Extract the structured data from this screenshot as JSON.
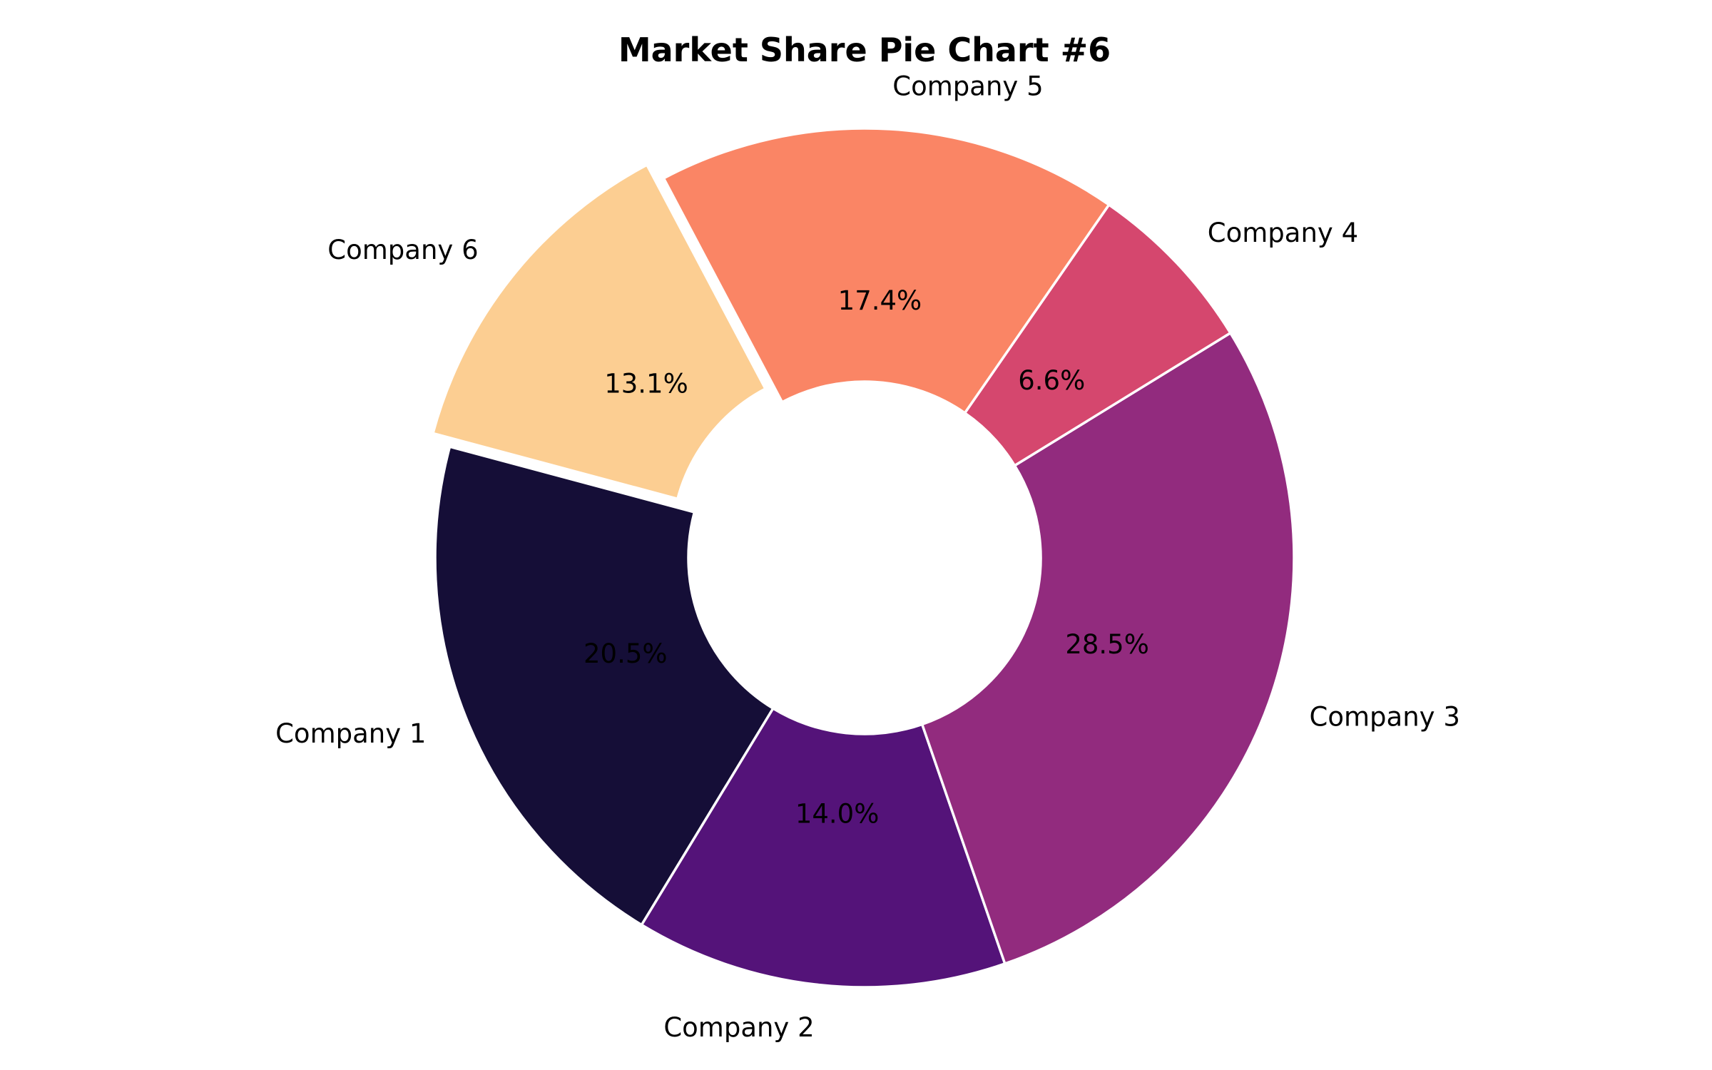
{
  "chart_data": {
    "type": "pie",
    "title": "Market Share Pie Chart #6",
    "donut": true,
    "start_angle_deg": 165,
    "direction": "counterclockwise",
    "autopct_format": "%.1f%%",
    "slices": [
      {
        "label": "Company 1",
        "value": 20.5,
        "pct_text": "20.5%",
        "color": "#150e37",
        "exploded": false
      },
      {
        "label": "Company 2",
        "value": 14.0,
        "pct_text": "14.0%",
        "color": "#541379",
        "exploded": false
      },
      {
        "label": "Company 3",
        "value": 28.5,
        "pct_text": "28.5%",
        "color": "#922b7e",
        "exploded": false
      },
      {
        "label": "Company 4",
        "value": 6.6,
        "pct_text": "6.6%",
        "color": "#d5476e",
        "exploded": false
      },
      {
        "label": "Company 5",
        "value": 17.4,
        "pct_text": "17.4%",
        "color": "#fa8565",
        "exploded": false
      },
      {
        "label": "Company 6",
        "value": 13.1,
        "pct_text": "13.1%",
        "color": "#fcce92",
        "exploded": true
      }
    ]
  }
}
